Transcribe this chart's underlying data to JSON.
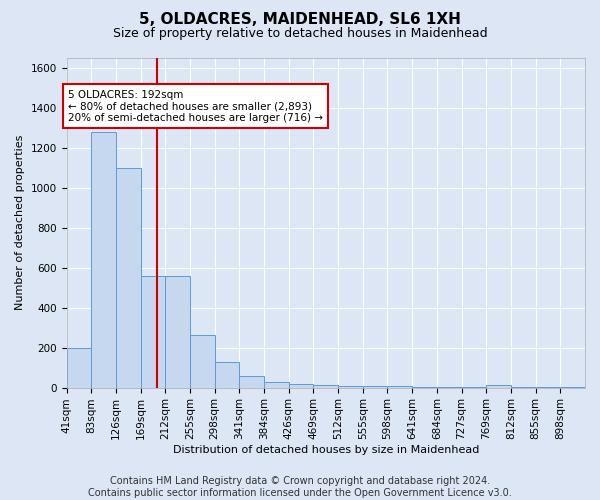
{
  "title": "5, OLDACRES, MAIDENHEAD, SL6 1XH",
  "subtitle": "Size of property relative to detached houses in Maidenhead",
  "xlabel": "Distribution of detached houses by size in Maidenhead",
  "ylabel": "Number of detached properties",
  "footer_line1": "Contains HM Land Registry data © Crown copyright and database right 2024.",
  "footer_line2": "Contains public sector information licensed under the Open Government Licence v3.0.",
  "bin_labels": [
    "41sqm",
    "83sqm",
    "126sqm",
    "169sqm",
    "212sqm",
    "255sqm",
    "298sqm",
    "341sqm",
    "384sqm",
    "426sqm",
    "469sqm",
    "512sqm",
    "555sqm",
    "598sqm",
    "641sqm",
    "684sqm",
    "727sqm",
    "769sqm",
    "812sqm",
    "855sqm",
    "898sqm"
  ],
  "bar_heights": [
    200,
    1280,
    1100,
    560,
    560,
    265,
    130,
    60,
    30,
    20,
    15,
    10,
    10,
    10,
    5,
    5,
    5,
    15,
    5,
    5,
    5
  ],
  "bar_color": "#c5d8f0",
  "bar_edge_color": "#5b9bd5",
  "red_line_x": 3.65,
  "annotation_text": "5 OLDACRES: 192sqm\n← 80% of detached houses are smaller (2,893)\n20% of semi-detached houses are larger (716) →",
  "annotation_box_color": "#ffffff",
  "annotation_box_edge": "#cc0000",
  "ylim": [
    0,
    1650
  ],
  "bg_color": "#dce6f5",
  "plot_bg_color": "#dce6f5",
  "grid_color": "#ffffff",
  "title_fontsize": 11,
  "subtitle_fontsize": 9,
  "axis_label_fontsize": 8,
  "tick_fontsize": 7.5,
  "footer_fontsize": 7
}
